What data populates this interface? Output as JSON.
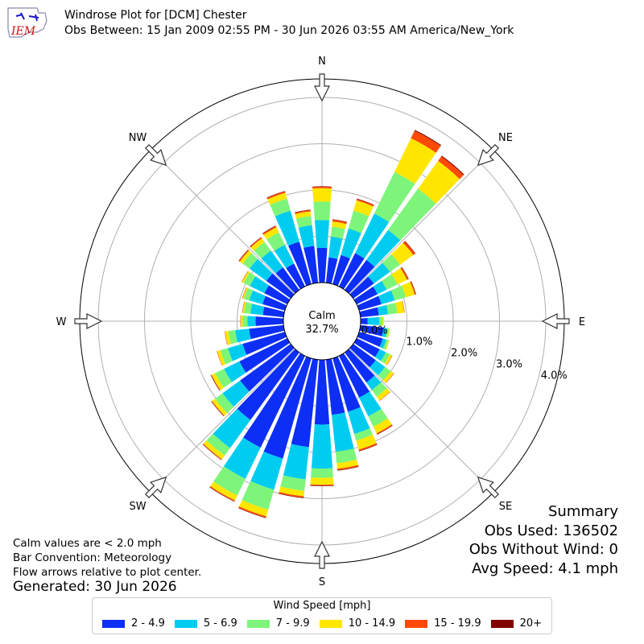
{
  "header": {
    "logo_text": "IEM",
    "title": "Windrose Plot for [DCM] Chester",
    "subtitle": "Obs Between: 15 Jan 2009 02:55 PM - 30 Jun 2026 03:55 AM America/New_York"
  },
  "notes": {
    "calm_def": "Calm values are < 2.0 mph",
    "convention": "Bar Convention: Meteorology",
    "flow": "Flow arrows relative to plot center.",
    "generated": "Generated: 30 Jun 2026"
  },
  "summary": {
    "heading": "Summary",
    "obs_used": "Obs Used: 136502",
    "obs_without_wind": "Obs Without Wind: 0",
    "avg_speed": "Avg Speed: 4.1 mph"
  },
  "chart_data": {
    "type": "windrose",
    "calm_label": "Calm",
    "calm_value": "32.7%",
    "direction_labels": [
      "N",
      "NE",
      "E",
      "SE",
      "S",
      "SW",
      "W",
      "NW"
    ],
    "radial_ticks": [
      "0.0%",
      "1.0%",
      "2.0%",
      "3.0%",
      "4.0%"
    ],
    "rmax_percent": 4.4,
    "legend_title": "Wind Speed [mph]",
    "bins": [
      {
        "label": "2 - 4.9",
        "color": "#0d2ef5"
      },
      {
        "label": "5 - 6.9",
        "color": "#00ccf0"
      },
      {
        "label": "7 - 9.9",
        "color": "#7df57a"
      },
      {
        "label": "10 - 14.9",
        "color": "#ffe600"
      },
      {
        "label": "15 - 19.9",
        "color": "#ff4a06"
      },
      {
        "label": "20+",
        "color": "#800000"
      }
    ],
    "directions_deg": [
      0,
      10,
      20,
      30,
      40,
      50,
      60,
      70,
      80,
      90,
      100,
      110,
      120,
      130,
      140,
      150,
      160,
      170,
      180,
      190,
      200,
      210,
      220,
      230,
      240,
      250,
      260,
      270,
      280,
      290,
      300,
      310,
      320,
      330,
      340,
      350
    ],
    "cumulative_percent": [
      [
        0.75,
        1.35,
        1.75,
        2.04,
        2.07,
        2.08
      ],
      [
        0.55,
        1.0,
        1.22,
        1.33,
        1.37,
        1.38
      ],
      [
        0.65,
        1.25,
        1.65,
        1.88,
        1.91,
        1.92
      ],
      [
        0.8,
        1.75,
        2.75,
        3.56,
        3.74,
        3.76
      ],
      [
        0.8,
        1.6,
        2.7,
        3.44,
        3.56,
        3.58
      ],
      [
        0.55,
        0.98,
        1.25,
        1.6,
        1.65,
        1.66
      ],
      [
        0.5,
        0.72,
        0.98,
        1.21,
        1.24,
        1.25
      ],
      [
        0.5,
        0.8,
        1.05,
        1.25,
        1.27,
        1.28
      ],
      [
        0.4,
        0.6,
        0.8,
        0.95,
        0.96,
        0.96
      ],
      [
        0.15,
        0.4,
        0.47,
        0.5,
        0.5,
        0.5
      ],
      [
        0.5,
        0.58,
        0.62,
        0.64,
        0.64,
        0.64
      ],
      [
        0.53,
        0.61,
        0.66,
        0.68,
        0.68,
        0.68
      ],
      [
        0.55,
        0.7,
        0.8,
        0.85,
        0.86,
        0.86
      ],
      [
        0.6,
        0.85,
        1.0,
        1.08,
        1.09,
        1.09
      ],
      [
        0.8,
        1.0,
        1.18,
        1.28,
        1.29,
        1.29
      ],
      [
        1.0,
        1.45,
        1.7,
        1.86,
        1.88,
        1.89
      ],
      [
        1.2,
        1.7,
        1.85,
        2.05,
        2.08,
        2.09
      ],
      [
        1.2,
        2.0,
        2.25,
        2.37,
        2.4,
        2.41
      ],
      [
        1.4,
        2.35,
        2.55,
        2.7,
        2.72,
        2.73
      ],
      [
        1.9,
        2.6,
        2.85,
        2.97,
        3.0,
        3.01
      ],
      [
        2.25,
        2.95,
        3.4,
        3.55,
        3.58,
        3.59
      ],
      [
        2.2,
        2.95,
        3.35,
        3.47,
        3.49,
        3.5
      ],
      [
        1.8,
        2.55,
        2.75,
        2.85,
        2.86,
        2.87
      ],
      [
        1.35,
        1.82,
        2.02,
        2.1,
        2.11,
        2.12
      ],
      [
        1.15,
        1.52,
        1.73,
        1.82,
        1.83,
        1.84
      ],
      [
        0.95,
        1.28,
        1.45,
        1.52,
        1.53,
        1.53
      ],
      [
        0.75,
        1.05,
        1.2,
        1.27,
        1.28,
        1.28
      ],
      [
        0.6,
        0.78,
        0.88,
        0.92,
        0.93,
        0.93
      ],
      [
        0.45,
        0.72,
        0.86,
        0.89,
        0.9,
        0.9
      ],
      [
        0.5,
        0.8,
        0.92,
        0.95,
        0.96,
        0.96
      ],
      [
        0.55,
        0.9,
        1.05,
        1.09,
        1.1,
        1.1
      ],
      [
        0.65,
        1.1,
        1.28,
        1.36,
        1.38,
        1.39
      ],
      [
        0.6,
        1.05,
        1.28,
        1.38,
        1.4,
        1.41
      ],
      [
        0.55,
        1.0,
        1.3,
        1.42,
        1.45,
        1.46
      ],
      [
        0.95,
        1.65,
        1.92,
        2.05,
        2.08,
        2.09
      ],
      [
        0.8,
        1.25,
        1.45,
        1.55,
        1.58,
        1.59
      ]
    ]
  }
}
